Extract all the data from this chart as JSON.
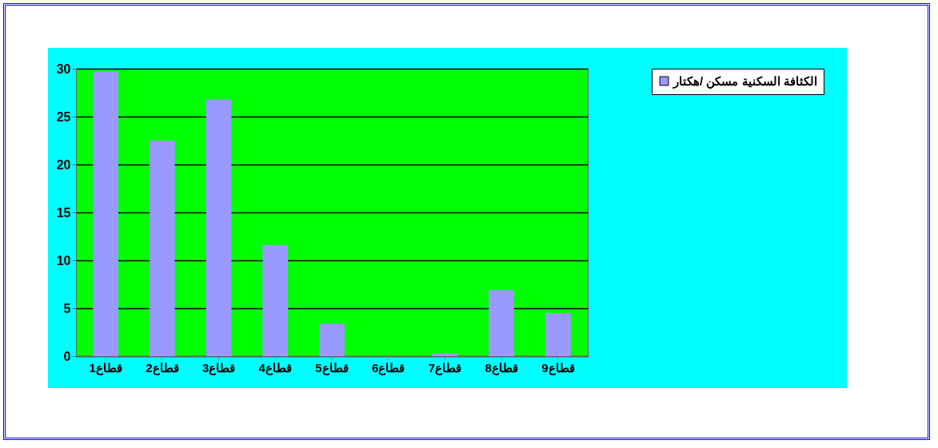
{
  "chart_data": {
    "type": "bar",
    "categories": [
      "قطاع1",
      "قطاع2",
      "قطاع3",
      "قطاع4",
      "قطاع5",
      "قطاع6",
      "قطاع7",
      "قطاع8",
      "قطاع9"
    ],
    "series": [
      {
        "name": "الكثافة السكنية مسكن /هكتار",
        "color": "#9999ff",
        "values": [
          29.7,
          22.5,
          26.8,
          11.6,
          3.4,
          0,
          0.3,
          6.9,
          4.5
        ]
      }
    ],
    "ylim": [
      0,
      30
    ],
    "yticks": [
      0,
      5,
      10,
      15,
      20,
      25,
      30
    ],
    "grid": "y",
    "legend": "right"
  }
}
